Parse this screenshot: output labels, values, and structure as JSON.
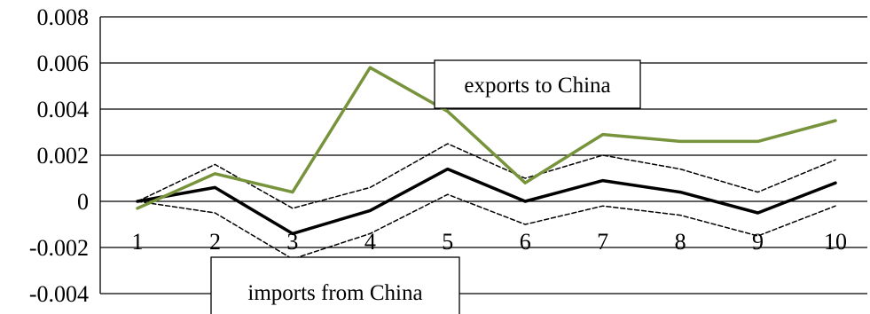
{
  "chart_data": {
    "type": "line",
    "title": "",
    "xlabel": "",
    "ylabel": "",
    "x": [
      1,
      2,
      3,
      4,
      5,
      6,
      7,
      8,
      9,
      10
    ],
    "ylim": [
      -0.004,
      0.008
    ],
    "yticks": [
      "0.008",
      "0.006",
      "0.004",
      "0.002",
      "0",
      "-0.002",
      "-0.004"
    ],
    "yticks_values": [
      0.008,
      0.006,
      0.004,
      0.002,
      0,
      -0.002,
      -0.004
    ],
    "grid": true,
    "series": [
      {
        "role": "exports",
        "color": "#77933C",
        "style": "solid",
        "values": [
          -0.0003,
          0.0012,
          0.0004,
          0.0058,
          0.0039,
          0.0008,
          0.0029,
          0.0026,
          0.0026,
          0.0035
        ]
      },
      {
        "role": "imports",
        "color": "#000000",
        "style": "solid",
        "values": [
          0.0,
          0.0006,
          -0.0014,
          -0.0004,
          0.0014,
          0.0,
          0.0009,
          0.0004,
          -0.0005,
          0.0008
        ]
      },
      {
        "role": "imports-upper-band",
        "color": "#000000",
        "style": "dashed",
        "values": [
          0.0,
          0.0016,
          -0.0003,
          0.0006,
          0.0025,
          0.001,
          0.002,
          0.0014,
          0.0004,
          0.0018
        ]
      },
      {
        "role": "imports-lower-band",
        "color": "#000000",
        "style": "dashed",
        "values": [
          0.0,
          -0.0005,
          -0.0025,
          -0.0014,
          0.0003,
          -0.001,
          -0.0002,
          -0.0006,
          -0.0015,
          -0.0002
        ]
      }
    ],
    "annotations": [
      {
        "text": "exports to China"
      },
      {
        "text": "imports from China"
      }
    ]
  }
}
